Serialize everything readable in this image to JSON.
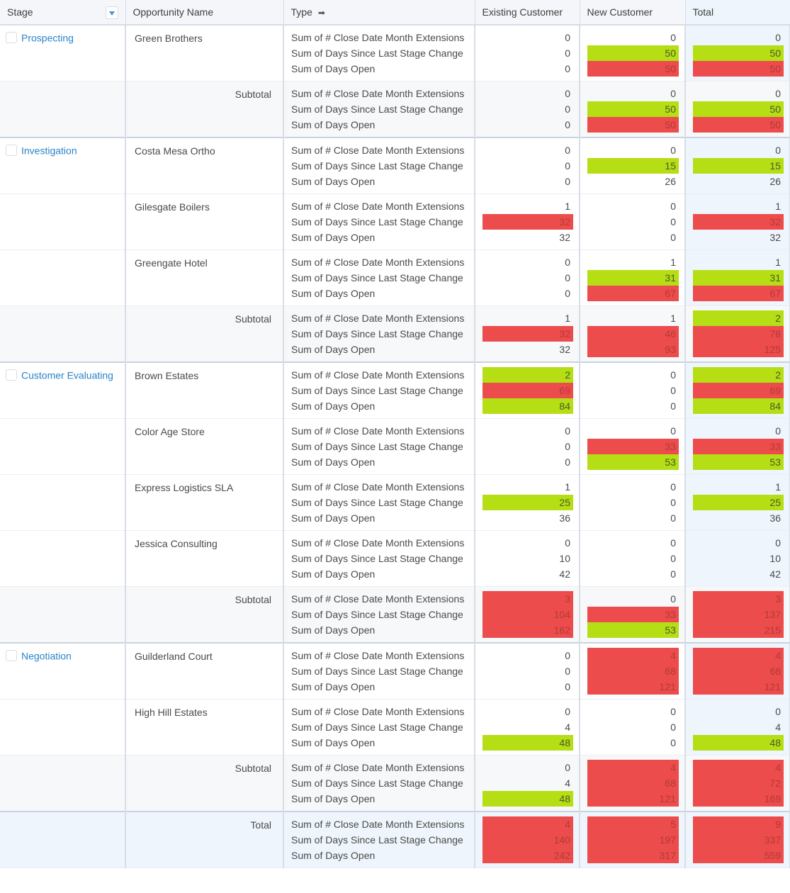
{
  "headers": {
    "stage": "Stage",
    "opportunity": "Opportunity Name",
    "type": "Type",
    "type_icon": "arrow-right-icon",
    "existing": "Existing Customer",
    "new": "New Customer",
    "total": "Total"
  },
  "measures": [
    "Sum of # Close Date Month Extensions",
    "Sum of Days Since Last Stage Change",
    "Sum of Days Open"
  ],
  "colors": {
    "green": "#b5de14",
    "red": "#ec4c4b",
    "link": "#2a84c8"
  },
  "rows": [
    {
      "stage": "Prospecting",
      "opportunity": "Green Brothers",
      "kind": "detail",
      "existing": [
        [
          0,
          ""
        ],
        [
          0,
          ""
        ],
        [
          0,
          ""
        ]
      ],
      "new": [
        [
          0,
          ""
        ],
        [
          50,
          "green"
        ],
        [
          50,
          "red"
        ]
      ],
      "total": [
        [
          0,
          ""
        ],
        [
          50,
          "green"
        ],
        [
          50,
          "red"
        ]
      ]
    },
    {
      "opportunity": "Subtotal",
      "kind": "subtotal",
      "existing": [
        [
          0,
          ""
        ],
        [
          0,
          ""
        ],
        [
          0,
          ""
        ]
      ],
      "new": [
        [
          0,
          ""
        ],
        [
          50,
          "green"
        ],
        [
          50,
          "red"
        ]
      ],
      "total": [
        [
          0,
          ""
        ],
        [
          50,
          "green"
        ],
        [
          50,
          "red"
        ]
      ]
    },
    {
      "stage": "Investigation",
      "opportunity": "Costa Mesa Ortho",
      "kind": "detail",
      "existing": [
        [
          0,
          ""
        ],
        [
          0,
          ""
        ],
        [
          0,
          ""
        ]
      ],
      "new": [
        [
          0,
          ""
        ],
        [
          15,
          "green"
        ],
        [
          26,
          ""
        ]
      ],
      "total": [
        [
          0,
          ""
        ],
        [
          15,
          "green"
        ],
        [
          26,
          ""
        ]
      ]
    },
    {
      "opportunity": "Gilesgate Boilers",
      "kind": "detail",
      "existing": [
        [
          1,
          ""
        ],
        [
          32,
          "red"
        ],
        [
          32,
          ""
        ]
      ],
      "new": [
        [
          0,
          ""
        ],
        [
          0,
          ""
        ],
        [
          0,
          ""
        ]
      ],
      "total": [
        [
          1,
          ""
        ],
        [
          32,
          "red"
        ],
        [
          32,
          ""
        ]
      ]
    },
    {
      "opportunity": "Greengate Hotel",
      "kind": "detail",
      "existing": [
        [
          0,
          ""
        ],
        [
          0,
          ""
        ],
        [
          0,
          ""
        ]
      ],
      "new": [
        [
          1,
          ""
        ],
        [
          31,
          "green"
        ],
        [
          67,
          "red"
        ]
      ],
      "total": [
        [
          1,
          ""
        ],
        [
          31,
          "green"
        ],
        [
          67,
          "red"
        ]
      ]
    },
    {
      "opportunity": "Subtotal",
      "kind": "subtotal",
      "existing": [
        [
          1,
          ""
        ],
        [
          32,
          "red"
        ],
        [
          32,
          ""
        ]
      ],
      "new": [
        [
          1,
          ""
        ],
        [
          46,
          "red"
        ],
        [
          93,
          "red"
        ]
      ],
      "total": [
        [
          2,
          "green"
        ],
        [
          78,
          "red"
        ],
        [
          125,
          "red"
        ]
      ]
    },
    {
      "stage": "Customer Evaluating",
      "opportunity": "Brown Estates",
      "kind": "detail",
      "existing": [
        [
          2,
          "green"
        ],
        [
          69,
          "red"
        ],
        [
          84,
          "green"
        ]
      ],
      "new": [
        [
          0,
          ""
        ],
        [
          0,
          ""
        ],
        [
          0,
          ""
        ]
      ],
      "total": [
        [
          2,
          "green"
        ],
        [
          69,
          "red"
        ],
        [
          84,
          "green"
        ]
      ]
    },
    {
      "opportunity": "Color Age Store",
      "kind": "detail",
      "existing": [
        [
          0,
          ""
        ],
        [
          0,
          ""
        ],
        [
          0,
          ""
        ]
      ],
      "new": [
        [
          0,
          ""
        ],
        [
          33,
          "red"
        ],
        [
          53,
          "green"
        ]
      ],
      "total": [
        [
          0,
          ""
        ],
        [
          33,
          "red"
        ],
        [
          53,
          "green"
        ]
      ]
    },
    {
      "opportunity": "Express Logistics SLA",
      "kind": "detail",
      "existing": [
        [
          1,
          ""
        ],
        [
          25,
          "green"
        ],
        [
          36,
          ""
        ]
      ],
      "new": [
        [
          0,
          ""
        ],
        [
          0,
          ""
        ],
        [
          0,
          ""
        ]
      ],
      "total": [
        [
          1,
          ""
        ],
        [
          25,
          "green"
        ],
        [
          36,
          ""
        ]
      ]
    },
    {
      "opportunity": "Jessica Consulting",
      "kind": "detail",
      "existing": [
        [
          0,
          ""
        ],
        [
          10,
          ""
        ],
        [
          42,
          ""
        ]
      ],
      "new": [
        [
          0,
          ""
        ],
        [
          0,
          ""
        ],
        [
          0,
          ""
        ]
      ],
      "total": [
        [
          0,
          ""
        ],
        [
          10,
          ""
        ],
        [
          42,
          ""
        ]
      ]
    },
    {
      "opportunity": "Subtotal",
      "kind": "subtotal",
      "existing": [
        [
          3,
          "red"
        ],
        [
          104,
          "red"
        ],
        [
          162,
          "red"
        ]
      ],
      "new": [
        [
          0,
          ""
        ],
        [
          33,
          "red"
        ],
        [
          53,
          "green"
        ]
      ],
      "total": [
        [
          3,
          "red"
        ],
        [
          137,
          "red"
        ],
        [
          215,
          "red"
        ]
      ]
    },
    {
      "stage": "Negotiation",
      "opportunity": "Guilderland Court",
      "kind": "detail",
      "existing": [
        [
          0,
          ""
        ],
        [
          0,
          ""
        ],
        [
          0,
          ""
        ]
      ],
      "new": [
        [
          4,
          "red"
        ],
        [
          68,
          "red"
        ],
        [
          121,
          "red"
        ]
      ],
      "total": [
        [
          4,
          "red"
        ],
        [
          68,
          "red"
        ],
        [
          121,
          "red"
        ]
      ]
    },
    {
      "opportunity": "High Hill Estates",
      "kind": "detail",
      "existing": [
        [
          0,
          ""
        ],
        [
          4,
          ""
        ],
        [
          48,
          "green"
        ]
      ],
      "new": [
        [
          0,
          ""
        ],
        [
          0,
          ""
        ],
        [
          0,
          ""
        ]
      ],
      "total": [
        [
          0,
          ""
        ],
        [
          4,
          ""
        ],
        [
          48,
          "green"
        ]
      ]
    },
    {
      "opportunity": "Subtotal",
      "kind": "subtotal",
      "existing": [
        [
          0,
          ""
        ],
        [
          4,
          ""
        ],
        [
          48,
          "green"
        ]
      ],
      "new": [
        [
          4,
          "red"
        ],
        [
          68,
          "red"
        ],
        [
          121,
          "red"
        ]
      ],
      "total": [
        [
          4,
          "red"
        ],
        [
          72,
          "red"
        ],
        [
          169,
          "red"
        ]
      ]
    },
    {
      "opportunity": "Total",
      "kind": "grand",
      "existing": [
        [
          4,
          "red"
        ],
        [
          140,
          "red"
        ],
        [
          242,
          "red"
        ]
      ],
      "new": [
        [
          5,
          "red"
        ],
        [
          197,
          "red"
        ],
        [
          317,
          "red"
        ]
      ],
      "total": [
        [
          9,
          "red"
        ],
        [
          337,
          "red"
        ],
        [
          559,
          "red"
        ]
      ]
    }
  ]
}
